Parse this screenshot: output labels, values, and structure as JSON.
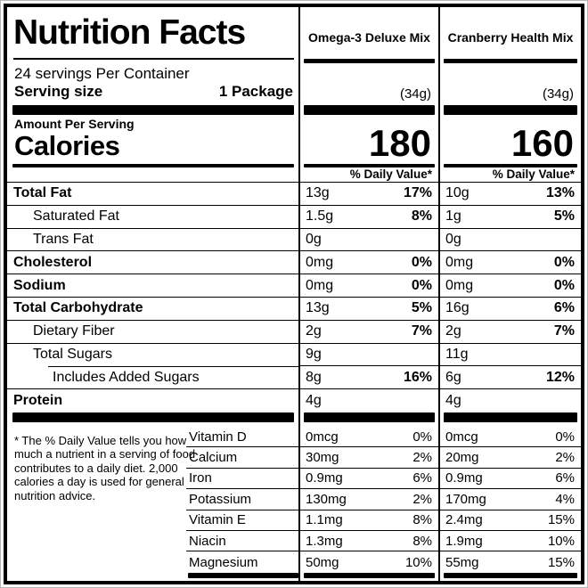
{
  "label": {
    "title": "Nutrition Facts",
    "servings_per_container": "24 servings Per Container",
    "serving_size_label": "Serving size",
    "serving_size_value": "1 Package",
    "amount_per_serving": "Amount Per Serving",
    "calories_label": "Calories",
    "daily_value_header": "% Daily Value*",
    "footnote": "* The % Daily Value tells you how much a nutrient in a serving of food contributes to a daily diet. 2,000 calories a day is used for general nutrition advice."
  },
  "colors": {
    "ink": "#000000",
    "paper": "#ffffff"
  },
  "products": [
    {
      "name": "Omega-3 Deluxe Mix",
      "serving_weight": "(34g)",
      "calories": "180"
    },
    {
      "name": "Cranberry Health Mix",
      "serving_weight": "(34g)",
      "calories": "160"
    }
  ],
  "nutrient_rows": [
    {
      "label": "Total Fat",
      "col1": {
        "amount": "13g",
        "dv": "17%"
      },
      "col2": {
        "amount": "10g",
        "dv": "13%"
      }
    },
    {
      "label": "Saturated Fat",
      "col1": {
        "amount": "1.5g",
        "dv": "8%"
      },
      "col2": {
        "amount": "1g",
        "dv": "5%"
      }
    },
    {
      "label": "Trans Fat",
      "col1": {
        "amount": "0g",
        "dv": ""
      },
      "col2": {
        "amount": "0g",
        "dv": ""
      }
    },
    {
      "label": "Cholesterol",
      "col1": {
        "amount": "0mg",
        "dv": "0%"
      },
      "col2": {
        "amount": "0mg",
        "dv": "0%"
      }
    },
    {
      "label": "Sodium",
      "col1": {
        "amount": "0mg",
        "dv": "0%"
      },
      "col2": {
        "amount": "0mg",
        "dv": "0%"
      }
    },
    {
      "label": "Total Carbohydrate",
      "col1": {
        "amount": "13g",
        "dv": "5%"
      },
      "col2": {
        "amount": "16g",
        "dv": "6%"
      }
    },
    {
      "label": "Dietary Fiber",
      "col1": {
        "amount": "2g",
        "dv": "7%"
      },
      "col2": {
        "amount": "2g",
        "dv": "7%"
      }
    },
    {
      "label": "Total Sugars",
      "col1": {
        "amount": "9g",
        "dv": ""
      },
      "col2": {
        "amount": "11g",
        "dv": ""
      }
    },
    {
      "label": "Includes Added Sugars",
      "col1": {
        "amount": "8g",
        "dv": "16%"
      },
      "col2": {
        "amount": "6g",
        "dv": "12%"
      }
    },
    {
      "label": "Protein",
      "col1": {
        "amount": "4g",
        "dv": ""
      },
      "col2": {
        "amount": "4g",
        "dv": ""
      }
    }
  ],
  "vitamin_rows": [
    {
      "label": "Vitamin D",
      "col1": {
        "amount": "0mcg",
        "dv": "0%"
      },
      "col2": {
        "amount": "0mcg",
        "dv": "0%"
      }
    },
    {
      "label": "Calcium",
      "col1": {
        "amount": "30mg",
        "dv": "2%"
      },
      "col2": {
        "amount": "20mg",
        "dv": "2%"
      }
    },
    {
      "label": "Iron",
      "col1": {
        "amount": "0.9mg",
        "dv": "6%"
      },
      "col2": {
        "amount": "0.9mg",
        "dv": "6%"
      }
    },
    {
      "label": "Potassium",
      "col1": {
        "amount": "130mg",
        "dv": "2%"
      },
      "col2": {
        "amount": "170mg",
        "dv": "4%"
      }
    },
    {
      "label": "Vitamin E",
      "col1": {
        "amount": "1.1mg",
        "dv": "8%"
      },
      "col2": {
        "amount": "2.4mg",
        "dv": "15%"
      }
    },
    {
      "label": "Niacin",
      "col1": {
        "amount": "1.3mg",
        "dv": "8%"
      },
      "col2": {
        "amount": "1.9mg",
        "dv": "10%"
      }
    },
    {
      "label": "Magnesium",
      "col1": {
        "amount": "50mg",
        "dv": "10%"
      },
      "col2": {
        "amount": "55mg",
        "dv": "15%"
      }
    }
  ]
}
